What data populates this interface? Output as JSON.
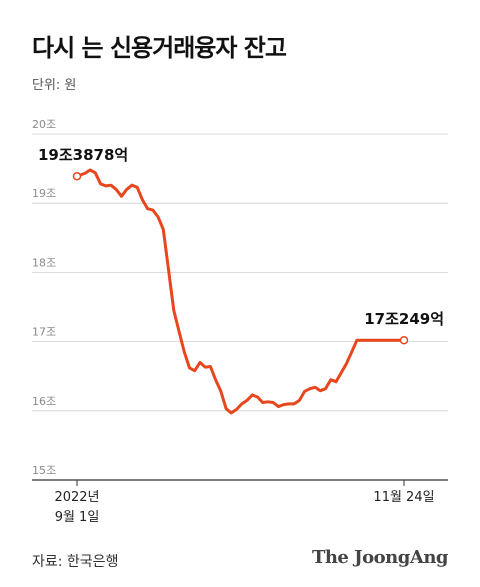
{
  "title": "다시 는 신용거래융자 잔고",
  "unit": "단위: 원",
  "source": "자료: 한국은행",
  "brand": "The JoongAng",
  "colors": {
    "line": "#e8461c",
    "grid": "#cfcfcf",
    "axis": "#333333"
  },
  "chart_data": {
    "type": "line",
    "title": "다시 는 신용거래융자 잔고",
    "ylabel": "",
    "xlabel": "",
    "ylim": [
      15,
      20
    ],
    "yticks": [
      {
        "value": 20,
        "label": "20조"
      },
      {
        "value": 19,
        "label": "19조"
      },
      {
        "value": 18,
        "label": "18조"
      },
      {
        "value": 17,
        "label": "17조"
      },
      {
        "value": 16,
        "label": "16조"
      },
      {
        "value": 15,
        "label": "15조"
      }
    ],
    "x_range": [
      0,
      1
    ],
    "x_ticks": [
      {
        "value": 0,
        "lines": [
          "2022년",
          "9월 1일"
        ]
      },
      {
        "value": 1,
        "lines": [
          "11월 24일"
        ]
      }
    ],
    "series": [
      {
        "points": [
          [
            0,
            19.39
          ],
          [
            0.024,
            19.43
          ],
          [
            0.04,
            19.48
          ],
          [
            0.056,
            19.44
          ],
          [
            0.072,
            19.28
          ],
          [
            0.088,
            19.25
          ],
          [
            0.104,
            19.26
          ],
          [
            0.12,
            19.2
          ],
          [
            0.136,
            19.1
          ],
          [
            0.152,
            19.2
          ],
          [
            0.168,
            19.26
          ],
          [
            0.184,
            19.23
          ],
          [
            0.2,
            19.05
          ],
          [
            0.216,
            18.92
          ],
          [
            0.232,
            18.9
          ],
          [
            0.248,
            18.8
          ],
          [
            0.264,
            18.62
          ],
          [
            0.28,
            18.03
          ],
          [
            0.296,
            17.45
          ],
          [
            0.312,
            17.15
          ],
          [
            0.328,
            16.85
          ],
          [
            0.344,
            16.62
          ],
          [
            0.36,
            16.58
          ],
          [
            0.376,
            16.7
          ],
          [
            0.392,
            16.63
          ],
          [
            0.408,
            16.64
          ],
          [
            0.424,
            16.45
          ],
          [
            0.44,
            16.28
          ],
          [
            0.456,
            16.03
          ],
          [
            0.472,
            15.97
          ],
          [
            0.488,
            16.02
          ],
          [
            0.504,
            16.1
          ],
          [
            0.52,
            16.15
          ],
          [
            0.536,
            16.23
          ],
          [
            0.552,
            16.2
          ],
          [
            0.568,
            16.12
          ],
          [
            0.584,
            16.13
          ],
          [
            0.6,
            16.12
          ],
          [
            0.616,
            16.06
          ],
          [
            0.632,
            16.09
          ],
          [
            0.648,
            16.1
          ],
          [
            0.664,
            16.1
          ],
          [
            0.68,
            16.15
          ],
          [
            0.696,
            16.28
          ],
          [
            0.712,
            16.32
          ],
          [
            0.728,
            16.34
          ],
          [
            0.744,
            16.29
          ],
          [
            0.76,
            16.32
          ],
          [
            0.776,
            16.45
          ],
          [
            0.792,
            16.42
          ],
          [
            0.808,
            16.55
          ],
          [
            0.824,
            16.68
          ],
          [
            0.84,
            16.85
          ],
          [
            0.856,
            17.02
          ],
          [
            0.872,
            17.02
          ],
          [
            0.888,
            17.02
          ],
          [
            0.904,
            17.02
          ],
          [
            0.92,
            17.02
          ],
          [
            0.936,
            17.02
          ],
          [
            0.952,
            17.02
          ],
          [
            0.968,
            17.02
          ],
          [
            1,
            17.02
          ]
        ]
      }
    ],
    "annotations": [
      {
        "label": "19조3878억",
        "x": 0,
        "y": 19.39,
        "anchor": "start"
      },
      {
        "label": "17조249억",
        "x": 1,
        "y": 17.02,
        "anchor": "end"
      }
    ],
    "grid": true,
    "legend": "none"
  }
}
